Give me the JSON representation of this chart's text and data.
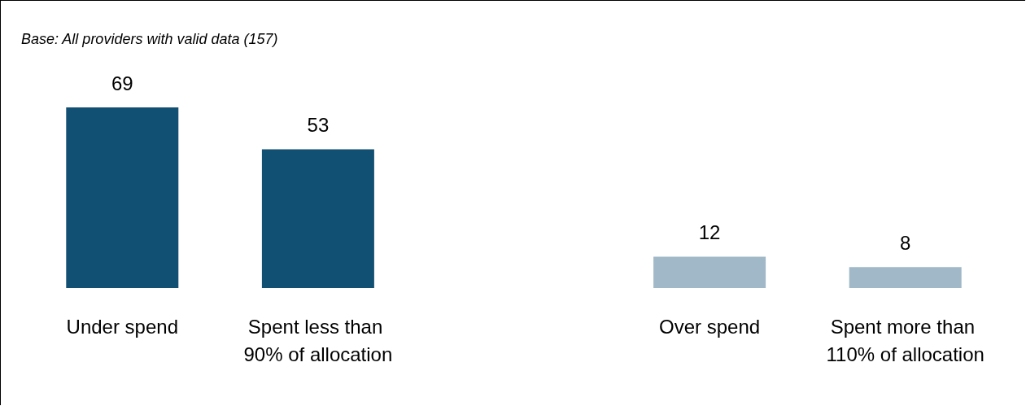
{
  "chart_data": {
    "type": "bar",
    "annotations": [
      "Base: All providers with valid data (157)"
    ],
    "categories": [
      "Under spend",
      "Spent less than 90% of allocation",
      null,
      "Over spend",
      "Spent more than 110% of allocation"
    ],
    "values": [
      69,
      53,
      null,
      12,
      8
    ],
    "colors": [
      "#114f73",
      "#114f73",
      null,
      "#a1b8c8",
      "#a1b8c8"
    ],
    "data_labels": true
  }
}
